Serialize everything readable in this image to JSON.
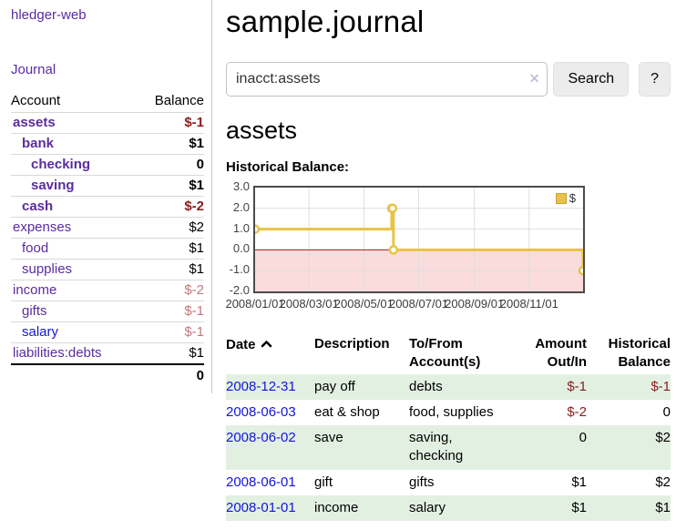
{
  "sidebar": {
    "app_title": "hledger-web",
    "nav": {
      "journal_label": "Journal"
    },
    "accounts_table": {
      "headers": {
        "account": "Account",
        "balance": "Balance"
      },
      "rows": [
        {
          "name": "assets",
          "depth": 0,
          "bold": true,
          "balance": "$-1",
          "negative": "strong",
          "link": "purple"
        },
        {
          "name": "bank",
          "depth": 1,
          "bold": true,
          "balance": "$1",
          "negative": null,
          "link": "purple"
        },
        {
          "name": "checking",
          "depth": 2,
          "bold": true,
          "balance": "0",
          "negative": null,
          "link": "purple"
        },
        {
          "name": "saving",
          "depth": 2,
          "bold": true,
          "balance": "$1",
          "negative": null,
          "link": "purple"
        },
        {
          "name": "cash",
          "depth": 1,
          "bold": true,
          "balance": "$-2",
          "negative": "strong",
          "link": "purple"
        },
        {
          "name": "expenses",
          "depth": 0,
          "bold": false,
          "balance": "$2",
          "negative": null,
          "link": "purple"
        },
        {
          "name": "food",
          "depth": 1,
          "bold": false,
          "balance": "$1",
          "negative": null,
          "link": "purple"
        },
        {
          "name": "supplies",
          "depth": 1,
          "bold": false,
          "balance": "$1",
          "negative": null,
          "link": "purple"
        },
        {
          "name": "income",
          "depth": 0,
          "bold": false,
          "balance": "$-2",
          "negative": "soft",
          "link": "purple"
        },
        {
          "name": "gifts",
          "depth": 1,
          "bold": false,
          "balance": "$-1",
          "negative": "soft",
          "link": "purple"
        },
        {
          "name": "salary",
          "depth": 1,
          "bold": false,
          "balance": "$-1",
          "negative": "soft",
          "link": "blue"
        },
        {
          "name": "liabilities:debts",
          "depth": 0,
          "bold": false,
          "balance": "$1",
          "negative": null,
          "link": "purple"
        }
      ],
      "total": "0"
    }
  },
  "header": {
    "title": "sample.journal"
  },
  "search": {
    "query": "inacct:assets",
    "clear_glyph": "✕",
    "search_label": "Search",
    "help_label": "?"
  },
  "account_page": {
    "title": "assets",
    "chart_label": "Historical Balance:"
  },
  "chart_data": {
    "type": "line",
    "title": "Historical Balance",
    "step": true,
    "xlim": [
      "2008/01/01",
      "2008/12/31"
    ],
    "ylim": [
      -2.0,
      3.0
    ],
    "y_ticks": [
      3.0,
      2.0,
      1.0,
      0.0,
      -1.0,
      -2.0
    ],
    "x_ticks": [
      "2008/01/01",
      "2008/03/01",
      "2008/05/01",
      "2008/07/01",
      "2008/09/01",
      "2008/11/01"
    ],
    "series": [
      {
        "name": "$",
        "color": "#e9c347",
        "points": [
          {
            "date": "2008/01/01",
            "value": 1
          },
          {
            "date": "2008/06/01",
            "value": 2
          },
          {
            "date": "2008/06/02",
            "value": 2
          },
          {
            "date": "2008/06/03",
            "value": 0
          },
          {
            "date": "2008/12/31",
            "value": -1
          }
        ]
      }
    ],
    "legend": {
      "label": "$",
      "position": "top-right"
    },
    "negative_region_color": "#fbdcdc",
    "zero_line_color": "#a61b1b",
    "grid_color": "#dedede"
  },
  "transactions": {
    "headers": {
      "date": "Date",
      "sort_icon": "chevron-up",
      "description": "Description",
      "accounts": "To/From Account(s)",
      "amount": "Amount Out/In",
      "balance": "Historical Balance"
    },
    "rows": [
      {
        "date": "2008-12-31",
        "description": "pay off",
        "accounts": [
          "debts"
        ],
        "amount": "$-1",
        "amount_negative": true,
        "balance": "$-1",
        "balance_negative": true
      },
      {
        "date": "2008-06-03",
        "description": "eat & shop",
        "accounts": [
          "food",
          "supplies"
        ],
        "amount": "$-2",
        "amount_negative": true,
        "balance": "0",
        "balance_negative": false
      },
      {
        "date": "2008-06-02",
        "description": "save",
        "accounts": [
          "saving",
          "checking"
        ],
        "amount": "0",
        "amount_negative": false,
        "balance": "$2",
        "balance_negative": false
      },
      {
        "date": "2008-06-01",
        "description": "gift",
        "accounts": [
          "gifts"
        ],
        "amount": "$1",
        "amount_negative": false,
        "balance": "$2",
        "balance_negative": false
      },
      {
        "date": "2008-01-01",
        "description": "income",
        "accounts": [
          "salary"
        ],
        "amount": "$1",
        "amount_negative": false,
        "balance": "$1",
        "balance_negative": false
      }
    ]
  }
}
